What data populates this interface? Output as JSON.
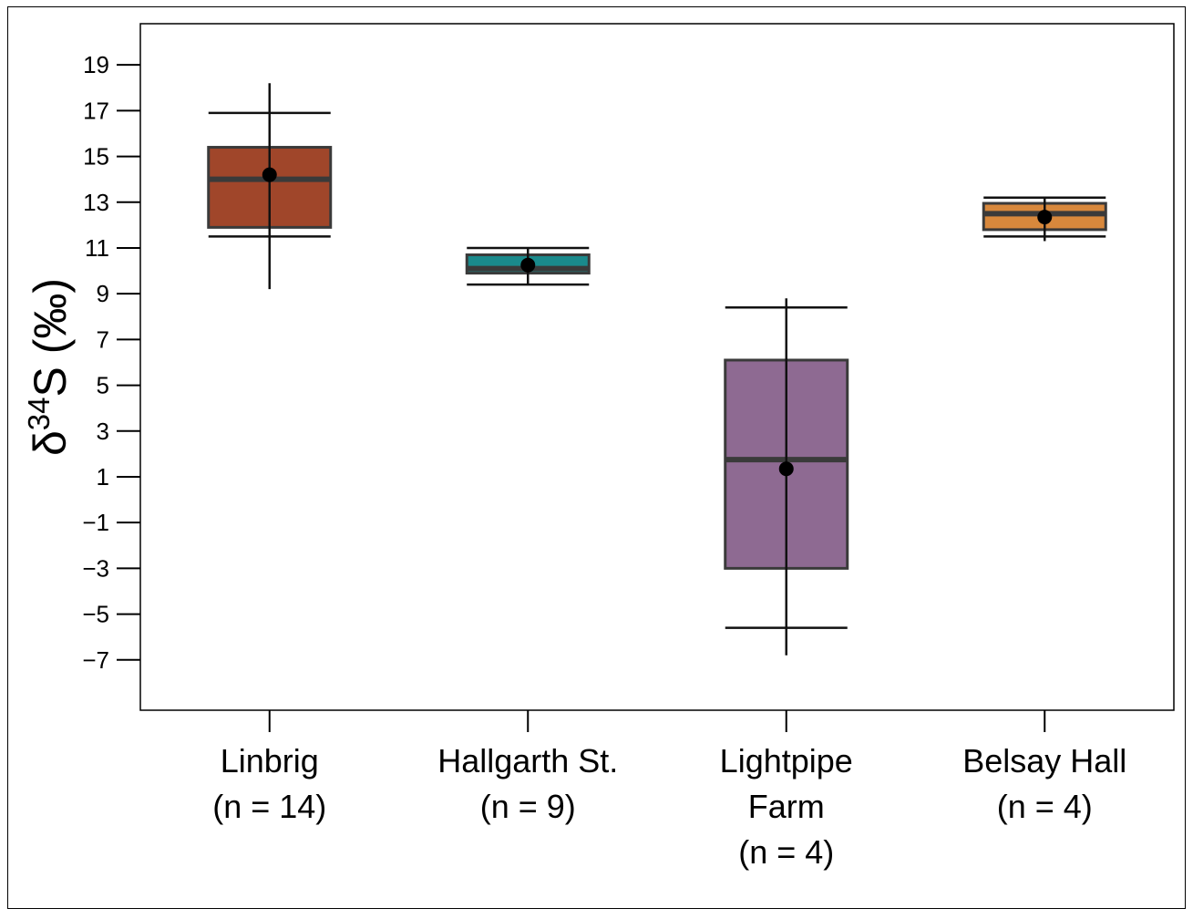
{
  "chart_data": {
    "type": "box",
    "title": "",
    "xlabel": "",
    "ylabel": {
      "prefix": "δ",
      "superscript": "34",
      "main": "S (‰)"
    },
    "ylim": [
      -9.2,
      20.8
    ],
    "yticks": [
      19,
      17,
      15,
      13,
      11,
      9,
      7,
      5,
      3,
      1,
      -1,
      -3,
      -5,
      -7
    ],
    "ytick_labels": [
      "19",
      "17",
      "15",
      "13",
      "11",
      "9",
      "7",
      "5",
      "3",
      "1",
      "−1",
      "−3",
      "−5",
      "−7"
    ],
    "grid": false,
    "legend": "none",
    "categories": [
      {
        "lines": [
          "Linbrig",
          "(n = 14)"
        ],
        "color": "#a0462a",
        "q1": 11.9,
        "median": 14.0,
        "q3": 15.4,
        "whisker_low": 11.5,
        "whisker_high": 16.9,
        "mean": 14.2,
        "line_low": 9.2,
        "line_high": 18.2
      },
      {
        "lines": [
          "Hallgarth St.",
          "(n = 9)"
        ],
        "color": "#1a8a8c",
        "q1": 9.9,
        "median": 10.1,
        "q3": 10.7,
        "whisker_low": 9.4,
        "whisker_high": 11.0,
        "mean": 10.25,
        "line_low": 9.4,
        "line_high": 11.0
      },
      {
        "lines": [
          "Lightpipe",
          "Farm",
          "(n = 4)"
        ],
        "color": "#8e6a92",
        "q1": -3.0,
        "median": 1.75,
        "q3": 6.1,
        "whisker_low": -5.6,
        "whisker_high": 8.4,
        "mean": 1.35,
        "line_low": -6.8,
        "line_high": 8.8
      },
      {
        "lines": [
          "Belsay Hall",
          "(n = 4)"
        ],
        "color": "#d8883c",
        "q1": 11.8,
        "median": 12.5,
        "q3": 12.95,
        "whisker_low": 11.5,
        "whisker_high": 13.2,
        "mean": 12.35,
        "line_low": 11.3,
        "line_high": 13.2
      }
    ]
  }
}
